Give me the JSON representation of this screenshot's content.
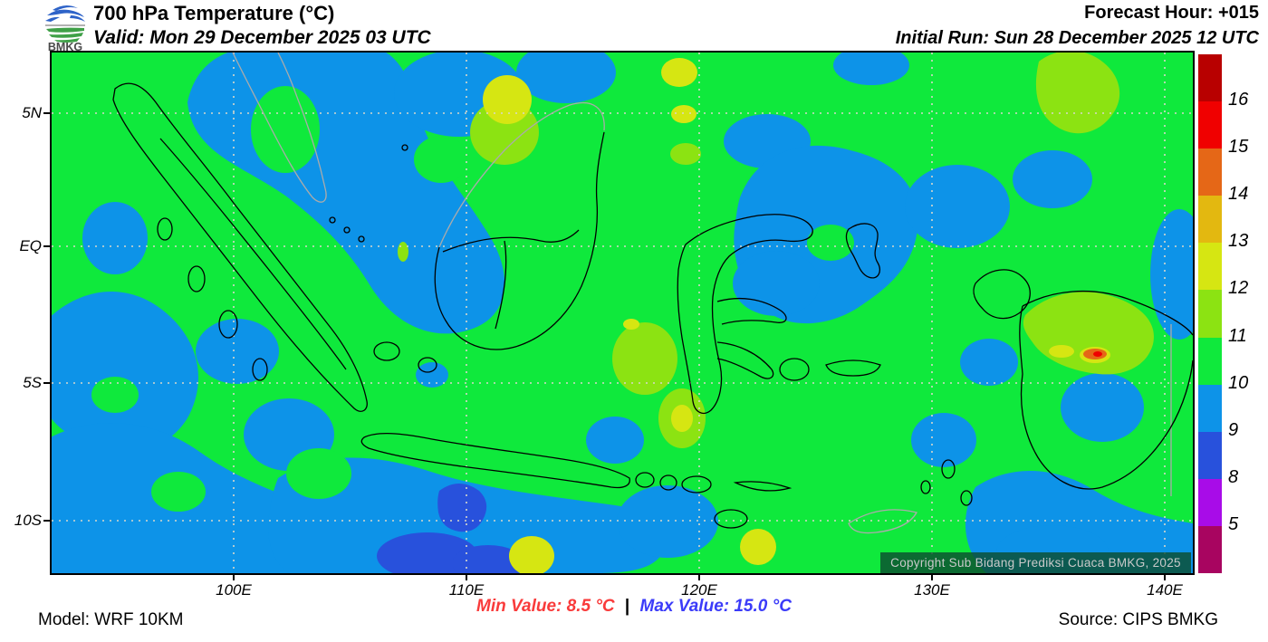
{
  "header": {
    "logo": {
      "text": "BMKG",
      "blue": "#2E63C8",
      "green": "#3FA047"
    },
    "title": "700 hPa Temperature (°C)",
    "valid": "Valid: Mon 29 December 2025 03 UTC",
    "forecast_hour": "Forecast Hour: +015",
    "initial_run": "Initial Run: Sun 28 December 2025 12 UTC"
  },
  "map": {
    "lat_labels": [
      "5N",
      "EQ",
      "5S",
      "10S"
    ],
    "lon_labels": [
      "100E",
      "110E",
      "120E",
      "130E",
      "140E"
    ],
    "copyright": "Copyright Sub Bidang Prediksi Cuaca BMKG, 2025",
    "fill_colors": {
      "green_10_11": "#0FE93C",
      "light_blue_9_10": "#0D93E8",
      "royal_blue_8_9": "#2851DC",
      "yellow_green_11_12": "#8CE312",
      "yellow_12_13": "#D6E612",
      "orange_14_15": "#E56717",
      "red_15_16": "#F00000"
    }
  },
  "colorbar": {
    "tick_labels_top_to_bottom": [
      "16",
      "15",
      "14",
      "13",
      "12",
      "11",
      "10",
      "9",
      "8",
      "5"
    ],
    "segment_colors_top_to_bottom": [
      "#B80000",
      "#F00000",
      "#E56717",
      "#E3B810",
      "#D6E612",
      "#8CE312",
      "#0FE93C",
      "#0D93E8",
      "#2851DC",
      "#A80CE8",
      "#A80560"
    ]
  },
  "footer": {
    "model": "Model: WRF 10KM",
    "min_value": "Min Value: 8.5 °C",
    "separator": "|",
    "max_value": "Max Value: 15.0 °C",
    "min_color": "#F93B3B",
    "max_color": "#3B3BF9",
    "source": "Source: CIPS BMKG"
  }
}
